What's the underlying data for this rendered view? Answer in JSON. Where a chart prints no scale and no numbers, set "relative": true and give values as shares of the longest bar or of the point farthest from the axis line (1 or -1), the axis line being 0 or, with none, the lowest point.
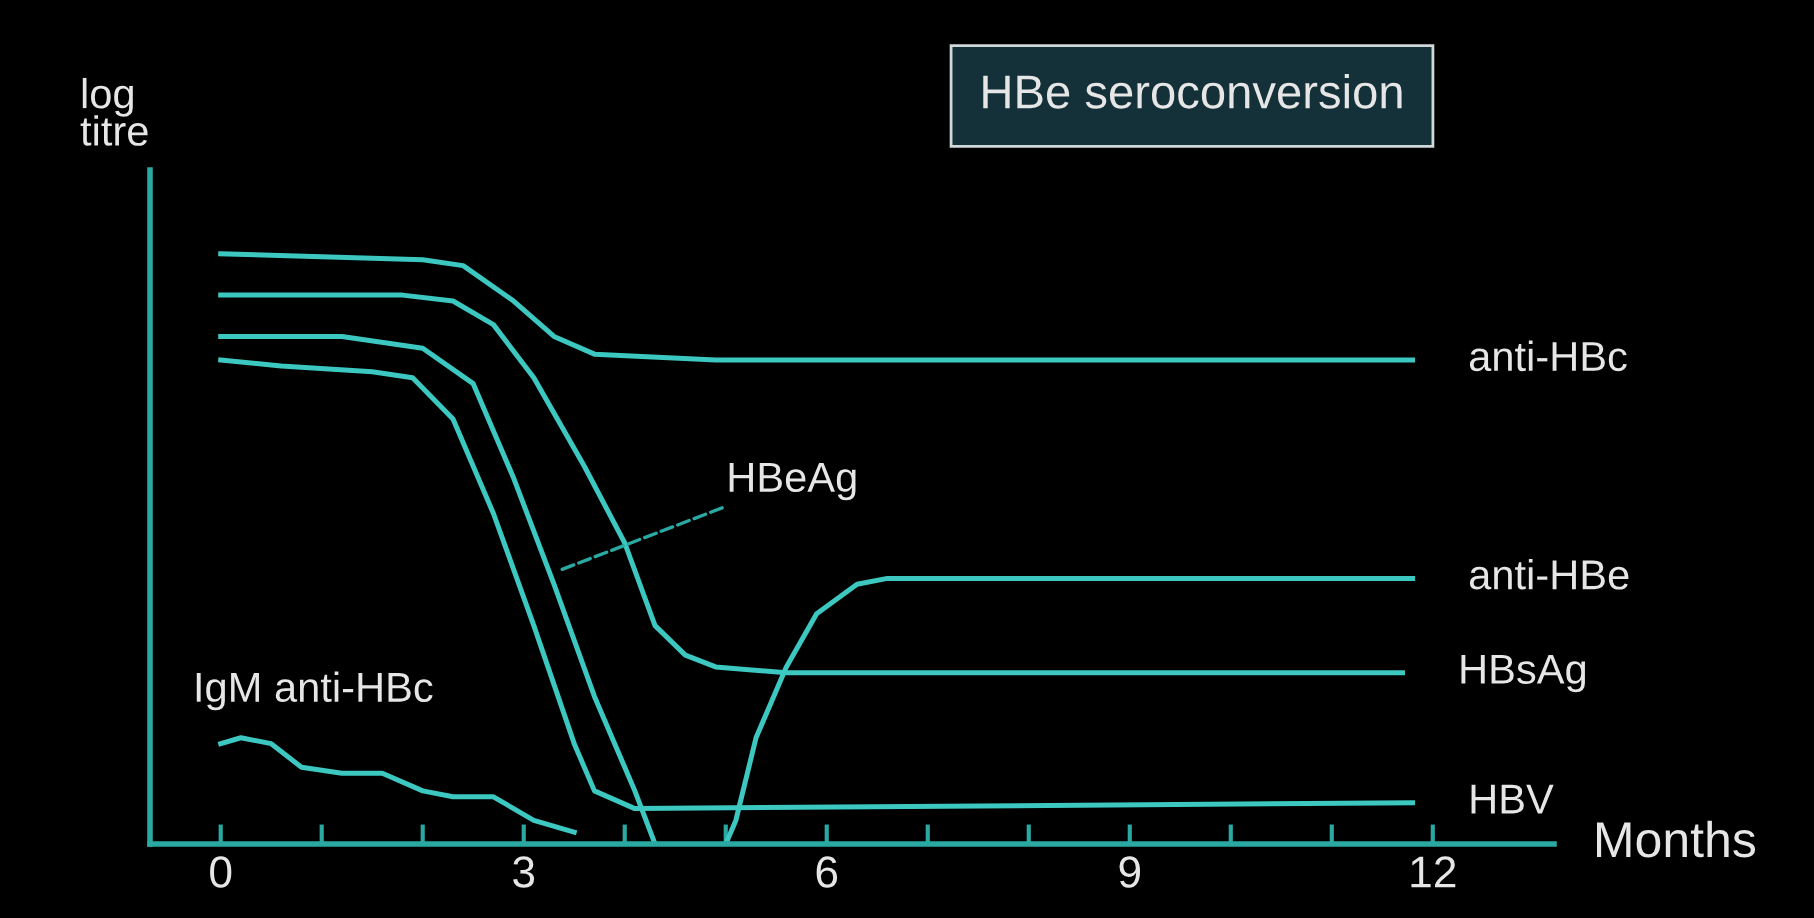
{
  "chart_data": {
    "type": "line",
    "title": "HBe seroconversion",
    "xlabel": "Months",
    "ylabel": "log\ntitre",
    "relative": true,
    "xlim": [
      -0.7,
      13.2
    ],
    "xticks": [
      {
        "value": 0,
        "label": "0"
      },
      {
        "value": 1,
        "label": null
      },
      {
        "value": 2,
        "label": null
      },
      {
        "value": 3,
        "label": "3"
      },
      {
        "value": 4,
        "label": null
      },
      {
        "value": 5,
        "label": null
      },
      {
        "value": 6,
        "label": "6"
      },
      {
        "value": 7,
        "label": null
      },
      {
        "value": 8,
        "label": null
      },
      {
        "value": 9,
        "label": "9"
      },
      {
        "value": 10,
        "label": null
      },
      {
        "value": 11,
        "label": null
      },
      {
        "value": 12,
        "label": "12"
      }
    ],
    "tick_labels": "x",
    "grid": false,
    "legend": false,
    "marker": "none",
    "line_style": "solid",
    "annotations": [
      {
        "text": "HBeAg",
        "x": 3.3,
        "y": 0.46
      }
    ],
    "series": [
      {
        "name": "anti-HBc",
        "color": "#3cc8c0",
        "x": [
          0,
          2,
          2.4,
          2.9,
          3.3,
          3.7,
          4.9,
          11.8
        ],
        "values": [
          1.0,
          0.99,
          0.98,
          0.92,
          0.86,
          0.83,
          0.82,
          0.82
        ]
      },
      {
        "name": "HBsAg",
        "color": "#3cc8c0",
        "x": [
          0,
          1.8,
          2.3,
          2.7,
          3.1,
          3.6,
          4.0,
          4.3,
          4.6,
          4.9,
          5.6,
          11.7
        ],
        "values": [
          0.93,
          0.93,
          0.92,
          0.88,
          0.79,
          0.64,
          0.51,
          0.37,
          0.32,
          0.3,
          0.29,
          0.29
        ]
      },
      {
        "color": "#3cc8c0",
        "x": [
          0,
          1.2,
          2.0,
          2.5,
          2.9,
          3.3,
          3.7,
          4.1,
          4.3
        ],
        "values": [
          0.86,
          0.86,
          0.84,
          0.78,
          0.62,
          0.44,
          0.25,
          0.09,
          0
        ]
      },
      {
        "name": "HBV",
        "color": "#3cc8c0",
        "x": [
          0,
          0.6,
          1.5,
          1.9,
          2.3,
          2.7,
          3.1,
          3.5,
          3.7,
          4.1,
          11.8
        ],
        "values": [
          0.82,
          0.81,
          0.8,
          0.79,
          0.72,
          0.56,
          0.37,
          0.17,
          0.09,
          0.06,
          0.07
        ]
      },
      {
        "name": "anti-HBe",
        "color": "#3cc8c0",
        "x": [
          5.0,
          5.1,
          5.3,
          5.6,
          5.9,
          6.3,
          6.6,
          11.8
        ],
        "values": [
          0,
          0.04,
          0.18,
          0.3,
          0.39,
          0.44,
          0.45,
          0.45
        ]
      },
      {
        "name": "IgM anti-HBc",
        "color": "#3cc8c0",
        "x": [
          0,
          0.2,
          0.5,
          0.8,
          1.2,
          1.6,
          2.0,
          2.3,
          2.7,
          3.1,
          3.5
        ],
        "values": [
          0.17,
          0.18,
          0.17,
          0.13,
          0.12,
          0.12,
          0.09,
          0.08,
          0.08,
          0.04,
          0.02
        ]
      }
    ]
  }
}
